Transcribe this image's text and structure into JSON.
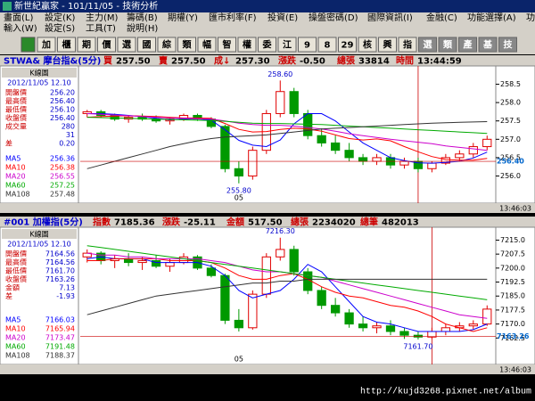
{
  "window": {
    "title": "新世紀贏家 - 101/11/05 - 技術分析"
  },
  "menu": {
    "row1": [
      "畫面(L)",
      "設定(K)",
      "主力(M)",
      "籌碼(B)",
      "期權(Y)",
      "匯市利率(F)",
      "投資(E)",
      "操盤密碼(D)",
      "國際資訊(I)",
      "金融(C)",
      "功能選擇(A)",
      "功能操作(Z)"
    ],
    "row2": [
      "輸入(W)",
      "設定(S)",
      "工具(T)",
      "說明(H)"
    ]
  },
  "toolbar": [
    "加",
    "櫃",
    "期",
    "價",
    "選",
    "國",
    "綜",
    "類",
    "幅",
    "智",
    "權",
    "委",
    "江",
    "9",
    "8",
    "29",
    "核",
    "興",
    "指",
    "選",
    "類",
    "產",
    "基",
    "技"
  ],
  "panels": [
    {
      "header": [
        "STWA& 摩台指&(5分)",
        "買",
        "257.50",
        "賣",
        "257.50",
        "成↓",
        "257.30",
        "漲跌",
        "-0.50",
        "總張",
        "33814",
        "時間",
        "13:44:59"
      ],
      "info": {
        "title": "K線圖",
        "date": "2012/11/05 12.10",
        "rows": [
          {
            "label": "開盤價",
            "value": "256.20"
          },
          {
            "label": "最高價",
            "value": "256.40"
          },
          {
            "label": "最低價",
            "value": "256.10"
          },
          {
            "label": "收盤價",
            "value": "256.40"
          },
          {
            "label": "成交量",
            "value": "280"
          },
          {
            "value": "31"
          },
          {
            "label": "差",
            "value": "0.20"
          }
        ]
      },
      "footer": "13:46:03"
    },
    {
      "header": [
        "#001 加權指(5分)",
        "指數",
        "7185.36",
        "漲跌",
        "-25.11",
        "金額",
        "517.50",
        "總張",
        "2234020",
        "總筆",
        "482013"
      ],
      "info": {
        "title": "K線圖",
        "date": "2012/11/05 12.10",
        "rows": [
          {
            "label": "開盤價",
            "value": "7164.56"
          },
          {
            "label": "最高價",
            "value": "7164.56"
          },
          {
            "label": "最低價",
            "value": "7161.70"
          },
          {
            "label": "收盤價",
            "value": "7163.26"
          },
          {
            "label": "金額",
            "value": "7.13"
          },
          {
            "label": "差",
            "value": "-1.93"
          }
        ]
      },
      "footer": "13:46:03"
    }
  ],
  "chart_data": [
    {
      "type": "candlestick",
      "ylim": [
        255.6,
        258.9
      ],
      "yticks": [
        {
          "value": 256,
          "label": "256.0"
        },
        256.5,
        {
          "value": 257,
          "label": "257.0"
        },
        257.5,
        {
          "value": 258,
          "label": "258.0"
        },
        258.5
      ],
      "candles": {
        "open": [
          257.7,
          257.75,
          257.65,
          257.55,
          257.6,
          257.55,
          257.5,
          257.55,
          257.65,
          257.55,
          257.35,
          256.2,
          256.0,
          256.7,
          257.7,
          258.3,
          257.7,
          257.1,
          256.9,
          256.7,
          256.5,
          256.4,
          256.5,
          256.3,
          256.4,
          256.2,
          256.35,
          256.5,
          256.6,
          256.8
        ],
        "high": [
          257.8,
          257.8,
          257.7,
          257.65,
          257.7,
          257.65,
          257.6,
          257.7,
          257.7,
          257.6,
          257.4,
          256.4,
          256.8,
          257.8,
          258.6,
          258.4,
          257.8,
          257.3,
          257.1,
          256.9,
          256.6,
          256.6,
          256.6,
          256.5,
          256.5,
          256.4,
          256.6,
          256.7,
          256.9,
          257.1
        ],
        "low": [
          257.6,
          257.6,
          257.5,
          257.45,
          257.5,
          257.45,
          257.4,
          257.5,
          257.5,
          257.3,
          256.1,
          255.8,
          255.9,
          256.6,
          257.6,
          257.6,
          257.0,
          256.8,
          256.6,
          256.4,
          256.3,
          256.3,
          256.2,
          256.2,
          256.1,
          256.1,
          256.3,
          256.4,
          256.5,
          256.7
        ],
        "close": [
          257.75,
          257.65,
          257.55,
          257.6,
          257.55,
          257.5,
          257.55,
          257.65,
          257.55,
          257.35,
          256.2,
          256.0,
          256.7,
          257.7,
          258.3,
          257.7,
          257.1,
          256.9,
          256.7,
          256.5,
          256.4,
          256.5,
          256.3,
          256.4,
          256.2,
          256.35,
          256.5,
          256.6,
          256.8,
          257.0
        ]
      },
      "series": [
        {
          "name": "MA5",
          "color": "#0000ff",
          "current": "256.36",
          "values": [
            257.7,
            257.7,
            257.68,
            257.65,
            257.62,
            257.57,
            257.53,
            257.55,
            257.56,
            257.52,
            257.26,
            256.97,
            256.84,
            256.8,
            256.98,
            257.42,
            257.7,
            257.7,
            257.5,
            257.2,
            256.9,
            256.7,
            256.5,
            256.42,
            256.36,
            256.35,
            256.37,
            256.4,
            256.49,
            256.65
          ]
        },
        {
          "name": "MA10",
          "color": "#ff0000",
          "current": "256.38",
          "values": [
            257.6,
            257.62,
            257.63,
            257.64,
            257.63,
            257.62,
            257.6,
            257.58,
            257.58,
            257.57,
            257.43,
            257.27,
            257.2,
            257.21,
            257.27,
            257.3,
            257.28,
            257.22,
            257.12,
            257.02,
            256.98,
            257.01,
            256.96,
            256.8,
            256.66,
            256.53,
            256.45,
            256.43,
            256.43,
            256.48
          ]
        },
        {
          "name": "MA20",
          "color": "#cc00cc",
          "current": "256.55",
          "values": [
            257.7,
            257.68,
            257.66,
            257.64,
            257.62,
            257.6,
            257.58,
            257.57,
            257.56,
            257.55,
            257.5,
            257.44,
            257.4,
            257.38,
            257.38,
            257.36,
            257.32,
            257.28,
            257.22,
            257.15,
            257.1,
            257.05,
            257.0,
            256.96,
            256.92,
            256.88,
            256.82,
            256.78,
            256.74,
            256.7
          ]
        },
        {
          "name": "MA60",
          "color": "#00aa00",
          "current": "257.25",
          "values": [
            257.6,
            257.59,
            257.58,
            257.57,
            257.56,
            257.55,
            257.54,
            257.53,
            257.52,
            257.51,
            257.49,
            257.46,
            257.44,
            257.43,
            257.43,
            257.42,
            257.41,
            257.4,
            257.38,
            257.36,
            257.34,
            257.32,
            257.3,
            257.28,
            257.26,
            257.24,
            257.22,
            257.2,
            257.18,
            257.16
          ]
        },
        {
          "name": "MA108",
          "color": "#333333",
          "current": "257.48",
          "values": [
            256.2,
            256.3,
            256.4,
            256.5,
            256.6,
            256.7,
            256.8,
            256.88,
            256.96,
            257.02,
            257.06,
            257.08,
            257.1,
            257.12,
            257.16,
            257.2,
            257.24,
            257.28,
            257.3,
            257.32,
            257.34,
            257.36,
            257.38,
            257.4,
            257.42,
            257.44,
            257.45,
            257.46,
            257.47,
            257.48
          ]
        }
      ],
      "high_label": {
        "value": 258.6,
        "label": "258.60"
      },
      "low_label": {
        "value": 255.8,
        "label": "255.80"
      },
      "price_tag": {
        "value": 256.4,
        "label": "256.40"
      },
      "x_label": "05"
    },
    {
      "type": "candlestick",
      "ylim": [
        7155,
        7220
      ],
      "yticks": [
        7162.5,
        {
          "value": 7170,
          "label": "7170.0"
        },
        7177.5,
        {
          "value": 7185,
          "label": "7185.0"
        },
        7192.5,
        {
          "value": 7200,
          "label": "7200.0"
        },
        7207.5,
        {
          "value": 7215,
          "label": "7215.0"
        }
      ],
      "candles": {
        "open": [
          7206,
          7208,
          7204,
          7205,
          7203,
          7204,
          7201,
          7203,
          7206,
          7200,
          7196,
          7172,
          7168,
          7186,
          7206,
          7210,
          7198,
          7188,
          7180,
          7176,
          7170,
          7168,
          7169,
          7166,
          7164,
          7163,
          7166,
          7168,
          7169,
          7170
        ],
        "high": [
          7210,
          7209,
          7207,
          7208,
          7206,
          7207,
          7205,
          7208,
          7207,
          7202,
          7197,
          7178,
          7188,
          7208,
          7216.3,
          7212,
          7200,
          7190,
          7184,
          7178,
          7174,
          7171,
          7172,
          7168,
          7166,
          7168,
          7170,
          7171,
          7172,
          7180
        ],
        "low": [
          7203,
          7202,
          7200,
          7201,
          7199,
          7200,
          7198,
          7202,
          7199,
          7195,
          7170,
          7166,
          7167,
          7184,
          7204,
          7196,
          7186,
          7178,
          7174,
          7168,
          7166,
          7165,
          7164,
          7162,
          7161.7,
          7162,
          7164,
          7166,
          7167,
          7169
        ],
        "close": [
          7208,
          7204,
          7205,
          7203,
          7204,
          7201,
          7203,
          7206,
          7200,
          7196,
          7172,
          7168,
          7186,
          7206,
          7210,
          7198,
          7188,
          7180,
          7176,
          7170,
          7168,
          7169,
          7166,
          7164,
          7163,
          7166,
          7168,
          7169,
          7170,
          7178
        ]
      },
      "series": [
        {
          "name": "MA5",
          "color": "#0000ff",
          "current": "7166.03",
          "values": [
            7205,
            7206,
            7205,
            7205,
            7205,
            7203,
            7203,
            7203,
            7203,
            7201,
            7196,
            7188,
            7184,
            7186,
            7188,
            7194,
            7202,
            7198,
            7190,
            7182,
            7174,
            7171,
            7170,
            7168,
            7166,
            7166,
            7166,
            7166,
            7167,
            7170
          ]
        },
        {
          "name": "MA10",
          "color": "#ff0000",
          "current": "7165.94",
          "values": [
            7204,
            7204,
            7205,
            7205,
            7205,
            7205,
            7204,
            7204,
            7204,
            7203,
            7200,
            7196,
            7194,
            7194,
            7196,
            7197,
            7194,
            7190,
            7187,
            7185,
            7184,
            7182,
            7180,
            7179,
            7177,
            7174,
            7170,
            7168,
            7166,
            7168
          ]
        },
        {
          "name": "MA20",
          "color": "#cc00cc",
          "current": "7173.47",
          "values": [
            7208,
            7207,
            7207,
            7206,
            7206,
            7205,
            7205,
            7205,
            7205,
            7204,
            7203,
            7201,
            7199,
            7198,
            7198,
            7197,
            7196,
            7195,
            7193,
            7191,
            7189,
            7187,
            7185,
            7183,
            7181,
            7179,
            7177,
            7175,
            7174,
            7173
          ]
        },
        {
          "name": "MA60",
          "color": "#00aa00",
          "current": "7191.48",
          "values": [
            7212,
            7211,
            7210,
            7209,
            7208,
            7207,
            7206,
            7205,
            7204,
            7203,
            7202,
            7201,
            7200,
            7199,
            7198,
            7197,
            7196,
            7195,
            7194,
            7193,
            7192,
            7191,
            7190,
            7189,
            7188,
            7187,
            7186,
            7185,
            7184,
            7183
          ]
        },
        {
          "name": "MA108",
          "color": "#333333",
          "current": "7188.37",
          "values": [
            7175,
            7177,
            7179,
            7181,
            7183,
            7185,
            7186,
            7187,
            7188,
            7189,
            7190,
            7191,
            7192,
            7192,
            7193,
            7193,
            7194,
            7194,
            7194,
            7194,
            7194,
            7194,
            7194,
            7194,
            7194,
            7194,
            7194,
            7194,
            7194,
            7194
          ]
        }
      ],
      "high_label": {
        "value": 7216.3,
        "label": "7216.30"
      },
      "low_label": {
        "value": 7161.7,
        "label": "7161.70"
      },
      "price_tag": {
        "value": 7163.26,
        "label": "7163.26"
      },
      "x_label": "05"
    }
  ],
  "footer": {
    "url": "http://kujd3268.pixnet.net/album"
  }
}
